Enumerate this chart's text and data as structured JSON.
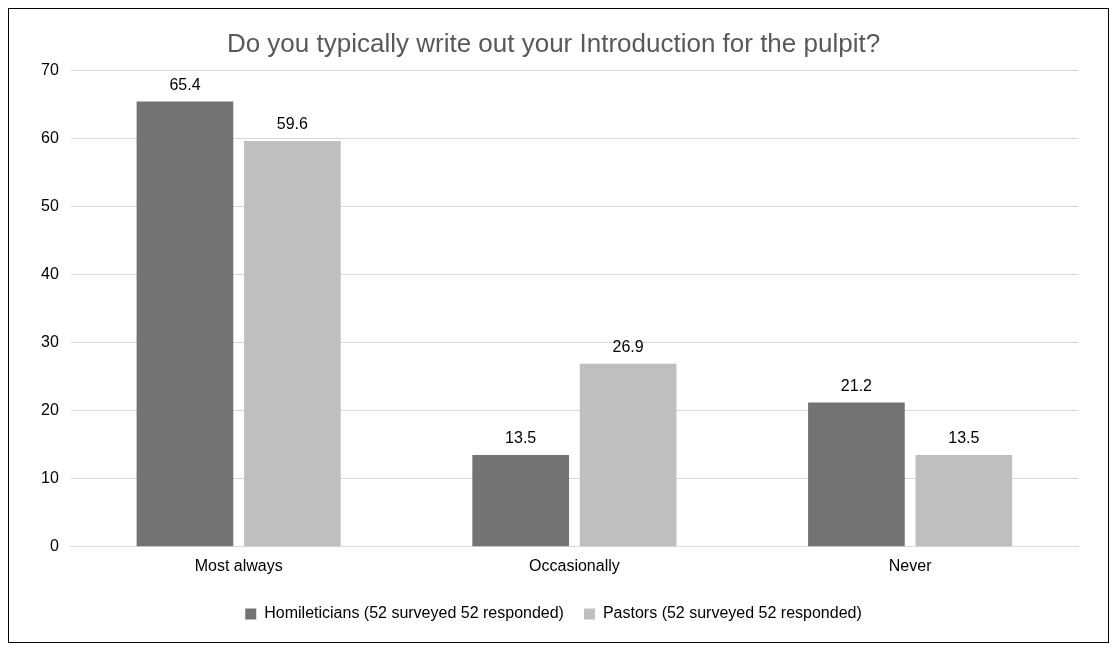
{
  "chart_data": {
    "type": "bar",
    "title": "Do you typically write out your Introduction for the pulpit?",
    "categories": [
      "Most always",
      "Occasionally",
      "Never"
    ],
    "series": [
      {
        "name": "Homileticians (52 surveyed 52 responded)",
        "color": "#737373",
        "values": [
          65.4,
          13.5,
          21.2
        ]
      },
      {
        "name": "Pastors (52 surveyed 52 responded)",
        "color": "#bfbfbf",
        "values": [
          59.6,
          26.9,
          13.5
        ]
      }
    ],
    "ylim": [
      0,
      70
    ],
    "yticks": [
      0,
      10,
      20,
      30,
      40,
      50,
      60,
      70
    ],
    "grid": "y",
    "legend": "bottom",
    "data_labels": true
  }
}
